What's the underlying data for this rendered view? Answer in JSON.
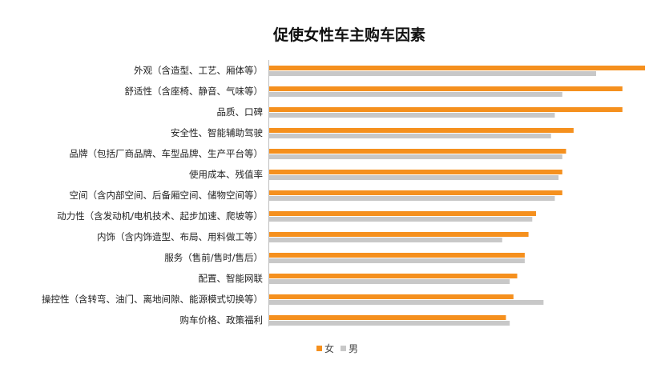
{
  "chart_data": {
    "type": "bar",
    "orientation": "horizontal",
    "title": "促使女性车主购车因素",
    "categories": [
      "外观（含造型、工艺、厢体等）",
      "舒适性（含座椅、静音、气味等）",
      "品质、口碑",
      "安全性、智能辅助驾驶",
      "品牌（包括厂商品牌、车型品牌、生产平台等）",
      "使用成本、残值率",
      "空间（含内部空间、后备厢空间、储物空间等）",
      "动力性（含发动机/电机技术、起步加速、爬坡等）",
      "内饰（含内饰造型、布局、用料做工等）",
      "服务（售前/售时/售后）",
      "配置、智能网联",
      "操控性（含转弯、油门、离地间隙、能源模式切换等）",
      "购车价格、政策福利"
    ],
    "series": [
      {
        "name": "女",
        "color": "#F5901E",
        "values": [
          100,
          94,
          94,
          81,
          79,
          78,
          78,
          71,
          69,
          68,
          66,
          65,
          63
        ]
      },
      {
        "name": "男",
        "color": "#C8C8C8",
        "values": [
          87,
          78,
          76,
          75,
          78,
          77,
          76,
          70,
          62,
          68,
          64,
          73,
          64
        ]
      }
    ],
    "xlim": [
      0,
      100
    ],
    "grid": false,
    "legend": "bottom"
  }
}
